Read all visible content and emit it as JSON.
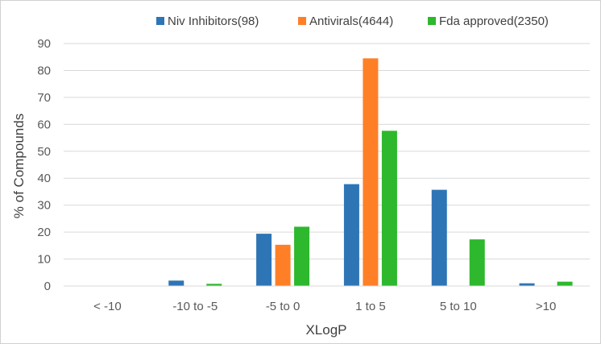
{
  "chart_data": {
    "type": "bar",
    "title": "",
    "xlabel": "XLogP",
    "ylabel": "% of Compounds",
    "ylim": [
      0,
      90
    ],
    "yticks": [
      0,
      10,
      20,
      30,
      40,
      50,
      60,
      70,
      80,
      90
    ],
    "grid": true,
    "legend_position": "top",
    "categories": [
      "< -10",
      "-10 to -5",
      "-5 to 0",
      "1 to 5",
      "5 to 10",
      ">10"
    ],
    "series": [
      {
        "name": "Niv Inhibitors(98)",
        "color": "#2e75b6",
        "values": [
          0,
          2,
          19.4,
          37.8,
          35.7,
          1.0
        ]
      },
      {
        "name": "Antivirals(4644)",
        "color": "#ff7f27",
        "values": [
          0,
          0,
          15.3,
          84.5,
          0,
          0
        ]
      },
      {
        "name": "Fda approved(2350)",
        "color": "#2db82d",
        "values": [
          0,
          0.8,
          22.0,
          57.6,
          17.3,
          1.6
        ]
      }
    ]
  }
}
